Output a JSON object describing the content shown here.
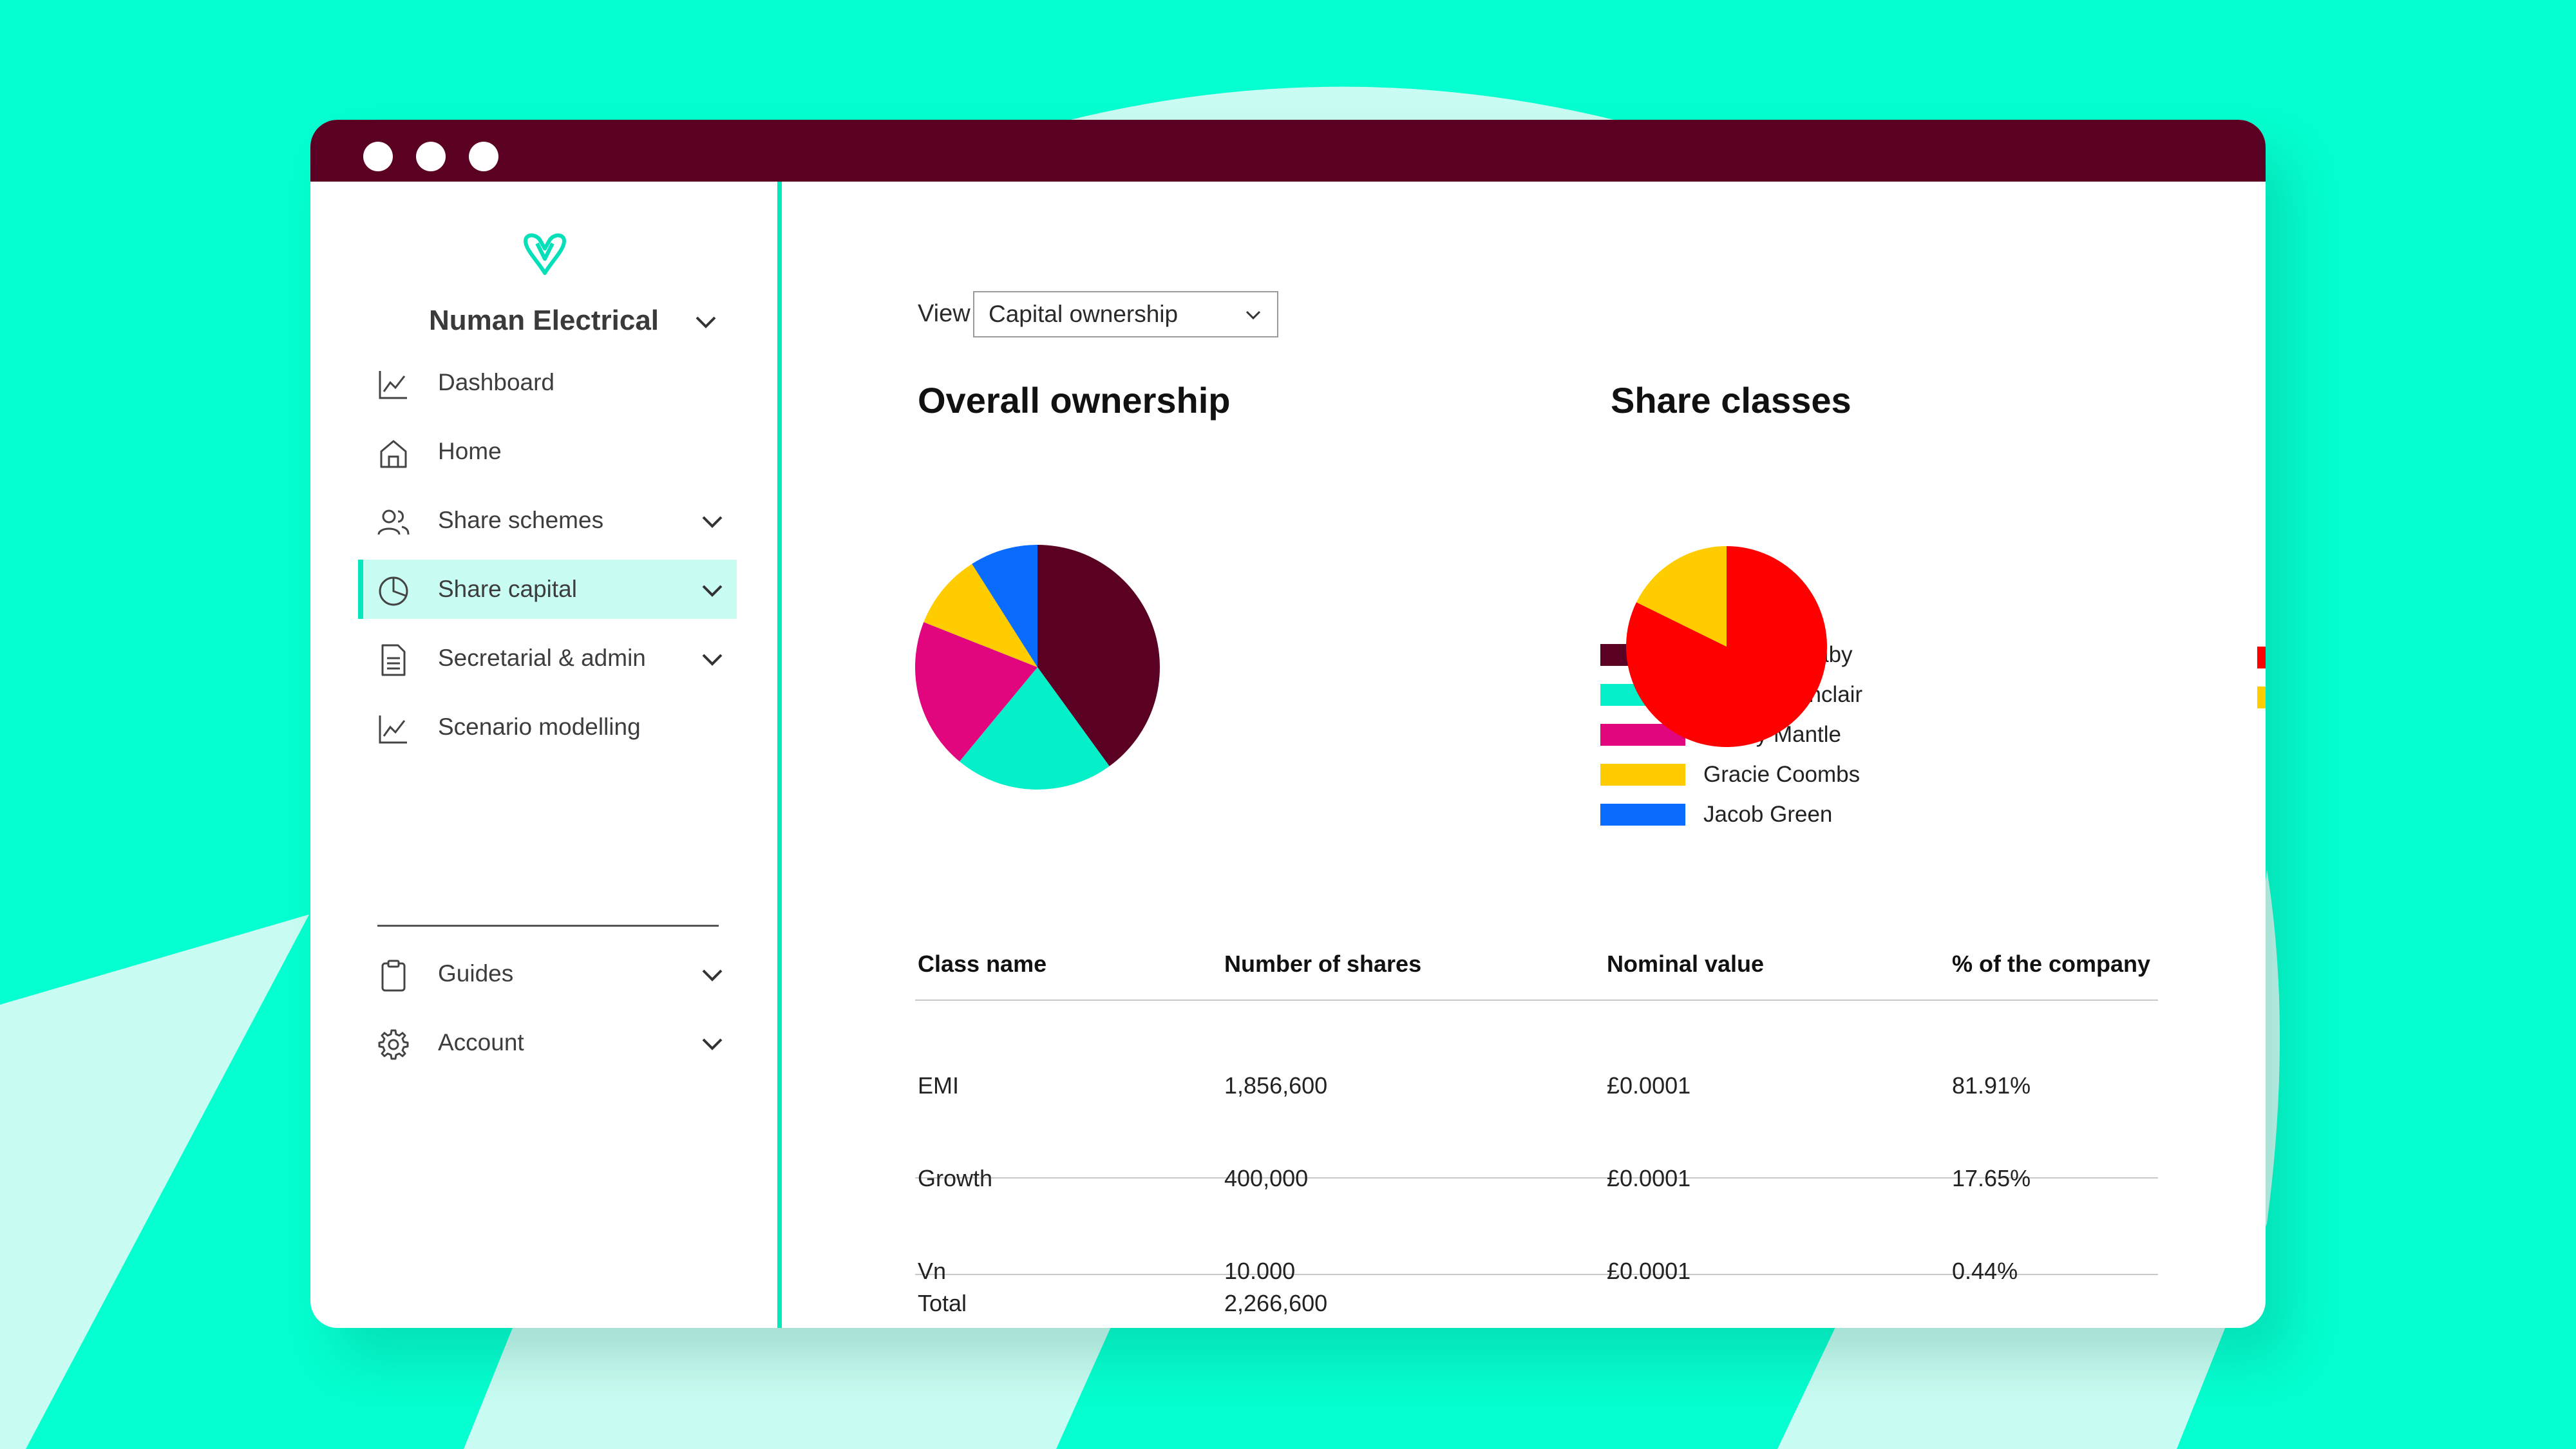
{
  "window": {
    "title_dots": [
      "dot",
      "dot",
      "dot"
    ]
  },
  "sidebar": {
    "logo_icon": "wagestream-heart-logo-icon",
    "company_name": "Numan Electrical",
    "items": [
      {
        "label": "Dashboard",
        "icon": "line-chart-icon",
        "has_chevron": false,
        "active": false
      },
      {
        "label": "Home",
        "icon": "home-icon",
        "has_chevron": false,
        "active": false
      },
      {
        "label": "Share schemes",
        "icon": "users-icon",
        "has_chevron": true,
        "active": false
      },
      {
        "label": "Share capital",
        "icon": "pie-chart-icon",
        "has_chevron": true,
        "active": true
      },
      {
        "label": "Secretarial & admin",
        "icon": "document-icon",
        "has_chevron": true,
        "active": false
      },
      {
        "label": "Scenario modelling",
        "icon": "line-chart-icon",
        "has_chevron": false,
        "active": false
      },
      {
        "label": "Guides",
        "icon": "clipboard-icon",
        "has_chevron": true,
        "active": false
      },
      {
        "label": "Account",
        "icon": "gear-icon",
        "has_chevron": true,
        "active": false
      }
    ]
  },
  "main": {
    "view_label": "View",
    "view_select_value": "Capital ownership",
    "overall_title": "Overall ownership",
    "classes_title": "Share classes",
    "table": {
      "headers": [
        "Class name",
        "Number of shares",
        "Nominal value",
        "% of the company"
      ],
      "rows": [
        [
          "EMI",
          "1,856,600",
          "£0.0001",
          "81.91%"
        ],
        [
          "Growth",
          "400,000",
          "£0.0001",
          "17.65%"
        ],
        [
          "Vn",
          "10.000",
          "£0.0001",
          "0.44%"
        ]
      ],
      "total_label": "Total",
      "total_value": "2,266,600"
    }
  },
  "colors": {
    "background": "#05FFD0",
    "accent": "#05E8BE",
    "titlebar": "#5A0023",
    "active_bg": "#C9FCF2"
  },
  "chart_data": [
    {
      "type": "pie",
      "title": "Overall ownership",
      "categories": [
        "Daniel Gadaby",
        "Hannah Sinclair",
        "Bobby Mantle",
        "Gracie Coombs",
        "Jacob Green"
      ],
      "values": [
        40,
        21,
        20,
        10,
        9
      ],
      "colors": [
        "#5A0023",
        "#05F0C8",
        "#E2067E",
        "#FFCC00",
        "#0A6CFF"
      ],
      "legend": "right"
    },
    {
      "type": "pie",
      "title": "Share classes",
      "categories": [
        "EMI",
        "Growth"
      ],
      "values": [
        81.91,
        17.65
      ],
      "colors": [
        "#FF0000",
        "#FFCC00"
      ],
      "legend": "right"
    }
  ]
}
